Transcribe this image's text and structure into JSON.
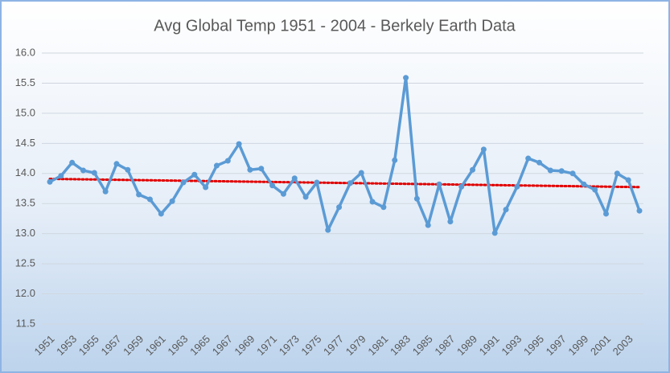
{
  "chart_data": {
    "type": "line",
    "title": "Avg Global Temp 1951 - 2004 - Berkely Earth Data",
    "categories": [
      "1951",
      null,
      "1953",
      null,
      "1955",
      null,
      "1957",
      null,
      "1959",
      null,
      "1961",
      null,
      "1963",
      null,
      "1965",
      null,
      "1967",
      null,
      "1969",
      null,
      "1971",
      null,
      "1973",
      null,
      "1975",
      null,
      "1977",
      null,
      "1979",
      null,
      "1981",
      null,
      "1983",
      null,
      "1985",
      null,
      "1987",
      null,
      "1989",
      null,
      "1991",
      null,
      "1993",
      null,
      "1995",
      null,
      "1997",
      null,
      "1999",
      null,
      "2001",
      null,
      "2003",
      null
    ],
    "values": [
      13.86,
      13.96,
      14.18,
      14.05,
      14.01,
      13.7,
      14.16,
      14.06,
      13.65,
      13.57,
      13.33,
      13.54,
      13.85,
      13.98,
      13.77,
      14.13,
      14.21,
      14.49,
      14.06,
      14.08,
      13.8,
      13.66,
      13.92,
      13.61,
      13.85,
      13.06,
      13.44,
      13.84,
      14.01,
      13.53,
      13.44,
      14.22,
      15.59,
      13.58,
      13.14,
      13.82,
      13.2,
      13.78,
      14.06,
      14.4,
      13.01,
      13.4,
      13.78,
      14.25,
      14.18,
      14.05,
      14.04,
      14.0,
      13.82,
      13.73,
      13.33,
      14.0,
      13.89,
      13.38
    ],
    "color": "#5b9bd5",
    "trendline": "linear",
    "trendline_color": "#e00000",
    "ylim": [
      11.5,
      16.0
    ],
    "yticks": [
      11.5,
      {
        "value": 12,
        "label": "12.0"
      },
      12.5,
      {
        "value": 13,
        "label": "13.0"
      },
      13.5,
      {
        "value": 14,
        "label": "14.0"
      },
      14.5,
      {
        "value": 15,
        "label": "15.0"
      },
      15.5,
      {
        "value": 16,
        "label": "16.0"
      }
    ],
    "grid": true
  }
}
